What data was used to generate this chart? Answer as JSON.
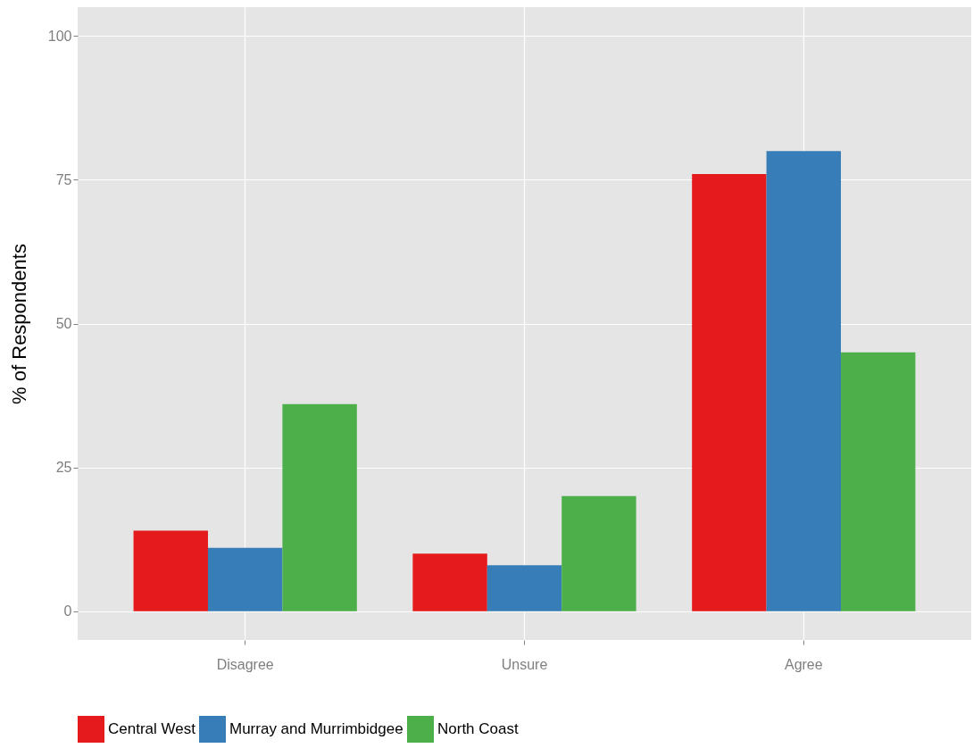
{
  "chart_data": {
    "type": "bar",
    "ylabel": "% of Respondents",
    "categories": [
      "Disagree",
      "Unsure",
      "Agree"
    ],
    "series": [
      {
        "name": "Central West",
        "color": "#e41a1c",
        "values": [
          14,
          10,
          76
        ]
      },
      {
        "name": "Murray and Murrimbidgee",
        "color": "#377eb8",
        "values": [
          11,
          8,
          80
        ]
      },
      {
        "name": "North Coast",
        "color": "#4daf4a",
        "values": [
          36,
          20,
          45
        ]
      }
    ],
    "ylim": [
      -5,
      105
    ],
    "yticks": [
      0,
      25,
      50,
      75,
      100
    ],
    "grid": true,
    "legend": "bottom"
  }
}
